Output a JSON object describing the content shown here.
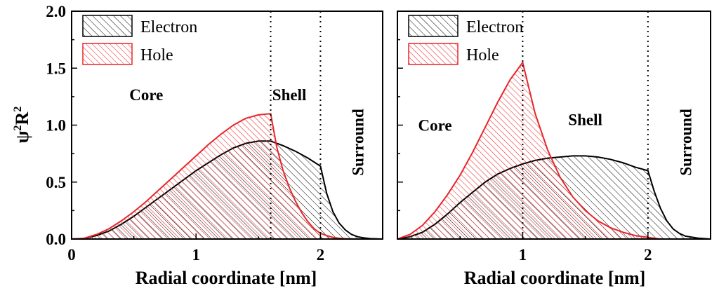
{
  "chart_data": [
    {
      "type": "area",
      "panel": "left",
      "xlabel": "Radial coordinate [nm]",
      "ylabel": "ψ²R²",
      "ylabel_main": "ψ",
      "ylabel_mid": "R",
      "ylabel_sup": "2",
      "xlim": [
        0,
        2.5
      ],
      "ylim": [
        0,
        2.0
      ],
      "xticks": [
        0,
        1,
        2
      ],
      "yticks": [
        0.0,
        0.5,
        1.0,
        1.5,
        2.0
      ],
      "ytick_labels": [
        "0.0",
        "0.5",
        "1.0",
        "1.5",
        "2.0"
      ],
      "xtick_labels": [
        "0",
        "1",
        "2"
      ],
      "legend_position": "top-left",
      "boundaries": [
        1.6,
        2.0
      ],
      "regions": [
        {
          "label": "Core",
          "x": 0.6,
          "y": 1.22
        },
        {
          "label": "Shell",
          "x": 1.75,
          "y": 1.22
        },
        {
          "label": "Surround",
          "x": 2.3,
          "y": 0.85,
          "rotated": true
        }
      ],
      "series": [
        {
          "name": "Electron",
          "color": "#000000",
          "x": [
            0,
            0.1,
            0.2,
            0.3,
            0.4,
            0.5,
            0.6,
            0.7,
            0.8,
            0.9,
            1.0,
            1.1,
            1.2,
            1.3,
            1.4,
            1.5,
            1.6,
            1.7,
            1.8,
            1.9,
            2.0,
            2.05,
            2.1,
            2.15,
            2.2,
            2.25,
            2.3,
            2.35,
            2.4,
            2.5
          ],
          "y": [
            0,
            0.005,
            0.03,
            0.07,
            0.13,
            0.2,
            0.28,
            0.36,
            0.44,
            0.52,
            0.6,
            0.67,
            0.74,
            0.8,
            0.84,
            0.86,
            0.86,
            0.82,
            0.77,
            0.71,
            0.64,
            0.4,
            0.24,
            0.14,
            0.08,
            0.04,
            0.02,
            0.01,
            0.004,
            0
          ]
        },
        {
          "name": "Hole",
          "color": "#e8262a",
          "x": [
            0,
            0.1,
            0.2,
            0.3,
            0.4,
            0.5,
            0.6,
            0.7,
            0.8,
            0.9,
            1.0,
            1.1,
            1.2,
            1.3,
            1.4,
            1.5,
            1.6,
            1.65,
            1.7,
            1.75,
            1.8,
            1.85,
            1.9,
            1.95,
            2.0,
            2.05,
            2.1,
            2.15,
            2.2,
            2.3
          ],
          "y": [
            0,
            0.006,
            0.04,
            0.09,
            0.16,
            0.24,
            0.33,
            0.43,
            0.53,
            0.63,
            0.73,
            0.83,
            0.92,
            1.0,
            1.06,
            1.09,
            1.1,
            0.8,
            0.6,
            0.45,
            0.33,
            0.23,
            0.15,
            0.09,
            0.05,
            0.03,
            0.015,
            0.007,
            0.003,
            0
          ]
        }
      ]
    },
    {
      "type": "area",
      "panel": "right",
      "xlabel": "Radial coordinate [nm]",
      "xlim": [
        0,
        2.5
      ],
      "ylim": [
        0,
        2.0
      ],
      "xticks": [
        1,
        2
      ],
      "xtick_labels": [
        "1",
        "2"
      ],
      "legend_position": "top-left",
      "boundaries": [
        1.0,
        2.0
      ],
      "regions": [
        {
          "label": "Core",
          "x": 0.3,
          "y": 0.95
        },
        {
          "label": "Shell",
          "x": 1.5,
          "y": 1.0
        },
        {
          "label": "Surround",
          "x": 2.3,
          "y": 0.85,
          "rotated": true
        }
      ],
      "series": [
        {
          "name": "Electron",
          "color": "#000000",
          "x": [
            0,
            0.1,
            0.2,
            0.3,
            0.4,
            0.5,
            0.6,
            0.7,
            0.8,
            0.9,
            1.0,
            1.1,
            1.2,
            1.3,
            1.4,
            1.5,
            1.6,
            1.7,
            1.8,
            1.9,
            2.0,
            2.05,
            2.1,
            2.15,
            2.2,
            2.25,
            2.3,
            2.4,
            2.5
          ],
          "y": [
            0,
            0.02,
            0.06,
            0.13,
            0.22,
            0.32,
            0.41,
            0.5,
            0.57,
            0.62,
            0.66,
            0.69,
            0.71,
            0.72,
            0.73,
            0.73,
            0.72,
            0.7,
            0.67,
            0.63,
            0.6,
            0.42,
            0.27,
            0.16,
            0.09,
            0.05,
            0.025,
            0.008,
            0
          ]
        },
        {
          "name": "Hole",
          "color": "#e8262a",
          "x": [
            0,
            0.1,
            0.2,
            0.3,
            0.4,
            0.5,
            0.6,
            0.7,
            0.8,
            0.9,
            1.0,
            1.1,
            1.2,
            1.3,
            1.4,
            1.5,
            1.6,
            1.7,
            1.8,
            1.9,
            2.0,
            2.1
          ],
          "y": [
            0,
            0.04,
            0.12,
            0.24,
            0.39,
            0.56,
            0.76,
            0.98,
            1.2,
            1.4,
            1.55,
            1.1,
            0.78,
            0.54,
            0.37,
            0.25,
            0.16,
            0.1,
            0.06,
            0.03,
            0.015,
            0
          ]
        }
      ]
    }
  ]
}
